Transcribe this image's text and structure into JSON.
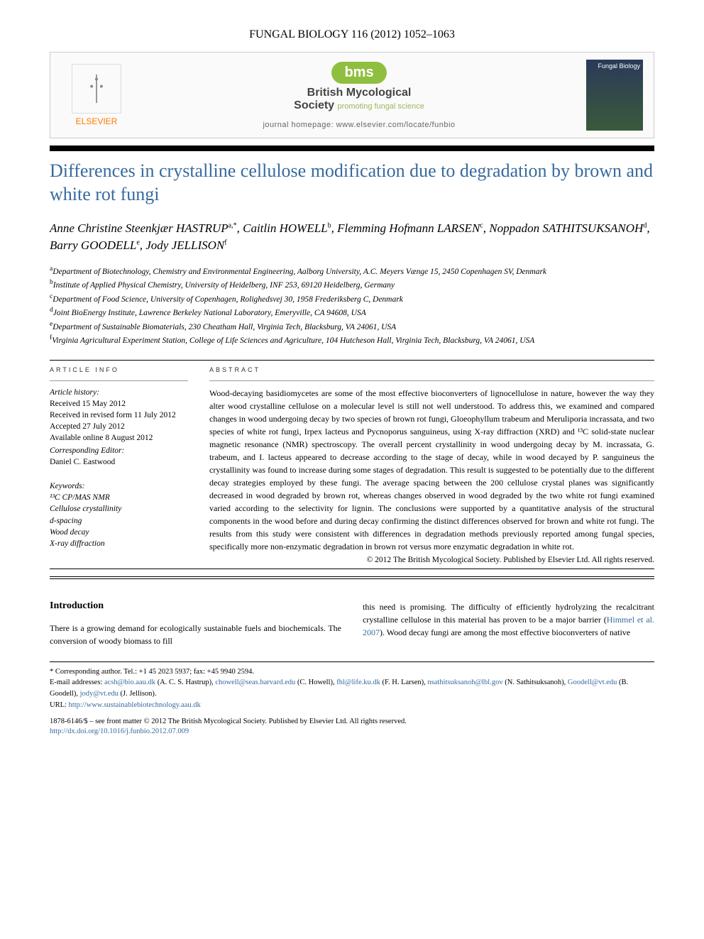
{
  "header": {
    "journal_ref": "FUNGAL BIOLOGY 116 (2012) 1052–1063",
    "publisher": "ELSEVIER",
    "society_logo_text": "bms",
    "society_name_bold": "British Mycological",
    "society_name_rest": "Society",
    "society_tagline": "promoting fungal science",
    "homepage_label": "journal homepage:",
    "homepage_url": "www.elsevier.com/locate/funbio",
    "cover_label": "Fungal Biology"
  },
  "title": "Differences in crystalline cellulose modification due to degradation by brown and white rot fungi",
  "authors_html": "Anne Christine Steenkjær HASTRUP<sup>a,*</sup>, Caitlin HOWELL<sup>b</sup>, Flemming Hofmann LARSEN<sup>c</sup>, Noppadon SATHITSUKSANOH<sup>d</sup>, Barry GOODELL<sup>e</sup>, Jody JELLISON<sup>f</sup>",
  "affiliations": [
    "<sup>a</sup>Department of Biotechnology, Chemistry and Environmental Engineering, Aalborg University, A.C. Meyers Vænge 15, 2450 Copenhagen SV, Denmark",
    "<sup>b</sup>Institute of Applied Physical Chemistry, University of Heidelberg, INF 253, 69120 Heidelberg, Germany",
    "<sup>c</sup>Department of Food Science, University of Copenhagen, Rolighedsvej 30, 1958 Frederiksberg C, Denmark",
    "<sup>d</sup>Joint BioEnergy Institute, Lawrence Berkeley National Laboratory, Emeryville, CA 94608, USA",
    "<sup>e</sup>Department of Sustainable Biomaterials, 230 Cheatham Hall, Virginia Tech, Blacksburg, VA 24061, USA",
    "<sup>f</sup>Virginia Agricultural Experiment Station, College of Life Sciences and Agriculture, 104 Hutcheson Hall, Virginia Tech, Blacksburg, VA 24061, USA"
  ],
  "article_info": {
    "section_label": "ARTICLE INFO",
    "history_label": "Article history:",
    "received": "Received 15 May 2012",
    "revised": "Received in revised form 11 July 2012",
    "accepted": "Accepted 27 July 2012",
    "online": "Available online 8 August 2012",
    "editor_label": "Corresponding Editor:",
    "editor": "Daniel C. Eastwood",
    "keywords_label": "Keywords:",
    "keywords": [
      "¹³C CP/MAS NMR",
      "Cellulose crystallinity",
      "d-spacing",
      "Wood decay",
      "X-ray diffraction"
    ]
  },
  "abstract": {
    "section_label": "ABSTRACT",
    "text": "Wood-decaying basidiomycetes are some of the most effective bioconverters of lignocellulose in nature, however the way they alter wood crystalline cellulose on a molecular level is still not well understood. To address this, we examined and compared changes in wood undergoing decay by two species of brown rot fungi, Gloeophyllum trabeum and Meruliporia incrassata, and two species of white rot fungi, Irpex lacteus and Pycnoporus sanguineus, using X-ray diffraction (XRD) and ¹³C solid-state nuclear magnetic resonance (NMR) spectroscopy. The overall percent crystallinity in wood undergoing decay by M. incrassata, G. trabeum, and I. lacteus appeared to decrease according to the stage of decay, while in wood decayed by P. sanguineus the crystallinity was found to increase during some stages of degradation. This result is suggested to be potentially due to the different decay strategies employed by these fungi. The average spacing between the 200 cellulose crystal planes was significantly decreased in wood degraded by brown rot, whereas changes observed in wood degraded by the two white rot fungi examined varied according to the selectivity for lignin. The conclusions were supported by a quantitative analysis of the structural components in the wood before and during decay confirming the distinct differences observed for brown and white rot fungi. The results from this study were consistent with differences in degradation methods previously reported among fungal species, specifically more non-enzymatic degradation in brown rot versus more enzymatic degradation in white rot.",
    "copyright": "© 2012 The British Mycological Society. Published by Elsevier Ltd. All rights reserved."
  },
  "introduction": {
    "heading": "Introduction",
    "col1": "There is a growing demand for ecologically sustainable fuels and biochemicals. The conversion of woody biomass to fill",
    "col2_pre": "this need is promising. The difficulty of efficiently hydrolyzing the recalcitrant crystalline cellulose in this material has proven to be a major barrier (",
    "col2_cite": "Himmel et al. 2007",
    "col2_post": "). Wood decay fungi are among the most effective bioconverters of native"
  },
  "footnotes": {
    "corresponding": "* Corresponding author. Tel.: +1 45 2023 5937; fax: +45 9940 2594.",
    "email_label": "E-mail addresses:",
    "emails": [
      {
        "addr": "acsh@bio.aau.dk",
        "who": "(A. C. S. Hastrup)"
      },
      {
        "addr": "chowell@seas.harvard.edu",
        "who": "(C. Howell)"
      },
      {
        "addr": "fhl@life.ku.dk",
        "who": "(F. H. Larsen)"
      },
      {
        "addr": "nsathitsuksanoh@lbl.gov",
        "who": "(N. Sathitsuksanoh)"
      },
      {
        "addr": "Goodell@vt.edu",
        "who": "(B. Goodell)"
      },
      {
        "addr": "jody@vt.edu",
        "who": "(J. Jellison)"
      }
    ],
    "url_label": "URL:",
    "url": "http://www.sustainablebiotechnology.aau.dk"
  },
  "footer": {
    "issn_line": "1878-6146/$ – see front matter © 2012 The British Mycological Society. Published by Elsevier Ltd. All rights reserved.",
    "doi": "http://dx.doi.org/10.1016/j.funbio.2012.07.009"
  },
  "colors": {
    "title_color": "#376a9e",
    "link_color": "#376a9e",
    "bms_green": "#8fbf3f",
    "elsevier_orange": "#ff7a00"
  }
}
